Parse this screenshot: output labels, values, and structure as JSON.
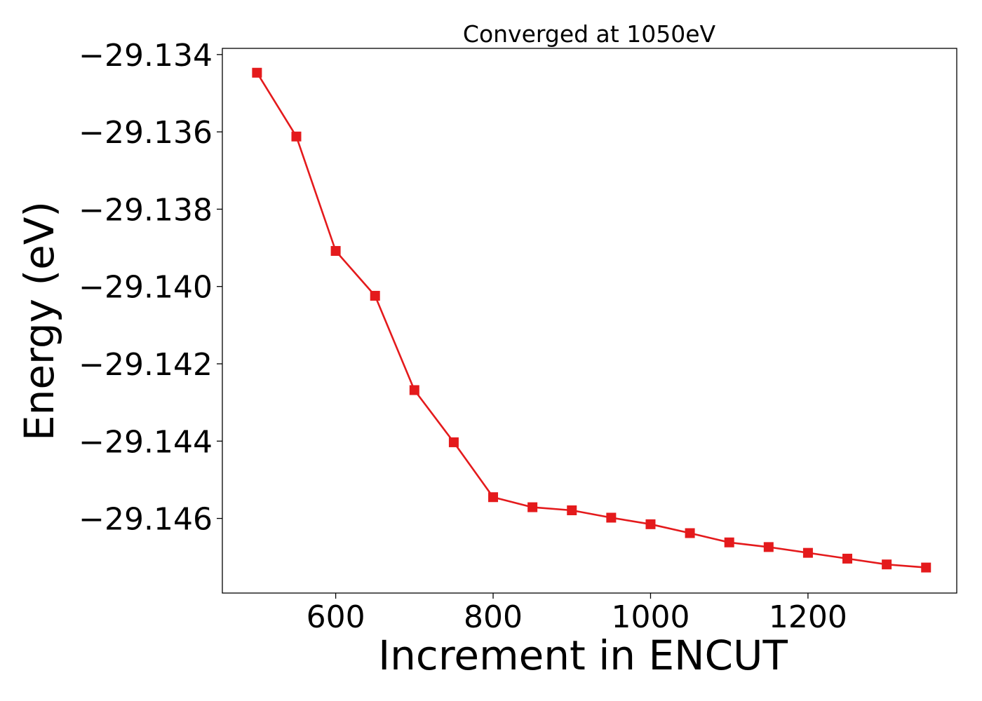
{
  "chart_data": {
    "type": "line",
    "title": "Converged at 1050eV",
    "xlabel": "Increment in ENCUT",
    "ylabel": "Energy (eV)",
    "xlim": [
      456,
      1389
    ],
    "ylim": [
      -29.14793,
      -29.13384
    ],
    "x_ticks": [
      600,
      800,
      1000,
      1200
    ],
    "y_ticks": [
      -29.134,
      -29.136,
      -29.138,
      -29.14,
      -29.142,
      -29.144,
      -29.146
    ],
    "y_tick_labels": [
      "−29.134",
      "−29.136",
      "−29.138",
      "−29.140",
      "−29.142",
      "−29.144",
      "−29.146"
    ],
    "grid": false,
    "series": [
      {
        "color": "#e41a1c",
        "marker": "square",
        "x": [
          500,
          550,
          600,
          650,
          700,
          750,
          800,
          850,
          900,
          950,
          1000,
          1050,
          1100,
          1150,
          1200,
          1250,
          1300,
          1350
        ],
        "y": [
          -29.13447,
          -29.13612,
          -29.13908,
          -29.14024,
          -29.14268,
          -29.14403,
          -29.14545,
          -29.14571,
          -29.14579,
          -29.14598,
          -29.14615,
          -29.14638,
          -29.14662,
          -29.14674,
          -29.14689,
          -29.14704,
          -29.14719,
          -29.14727
        ]
      }
    ]
  }
}
